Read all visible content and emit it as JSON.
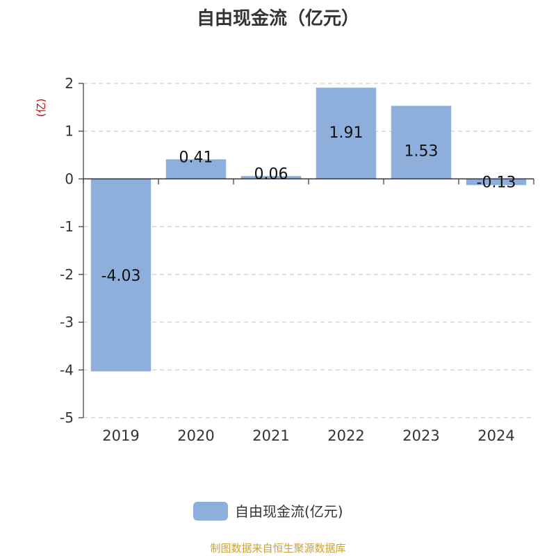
{
  "chart_data": {
    "type": "bar",
    "title": "自由现金流（亿元）",
    "ylabel": "(亿)",
    "categories": [
      "2019",
      "2020",
      "2021",
      "2022",
      "2023",
      "2024"
    ],
    "series": [
      {
        "name": "自由现金流(亿元)",
        "values": [
          -4.03,
          0.41,
          0.06,
          1.91,
          1.53,
          -0.13
        ],
        "color": "#8eaedb"
      }
    ],
    "data_labels": [
      "-4.03",
      "0.41",
      "0.06",
      "1.91",
      "1.53",
      "-0.13"
    ],
    "ylim": [
      -5,
      2
    ],
    "yticks": [
      2,
      1,
      0,
      -1,
      -2,
      -3,
      -4,
      -5
    ],
    "grid": true,
    "legend_position": "bottom"
  },
  "footer": {
    "source": "制图数据来自恒生聚源数据库",
    "source_color": "#c8a23a"
  },
  "colors": {
    "axis": "#333333",
    "grid": "#cccccc",
    "ylabel": "#cc0000",
    "text": "#333333"
  }
}
